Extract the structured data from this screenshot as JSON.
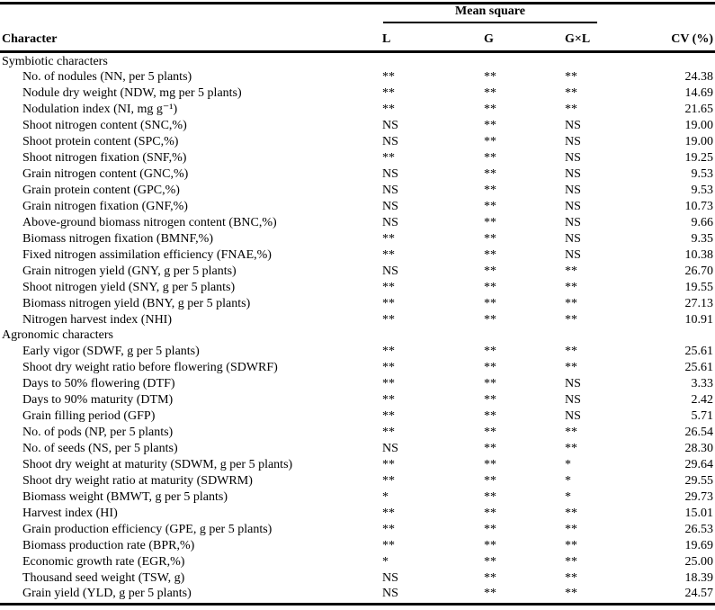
{
  "colors": {
    "text": "#000000",
    "background": "#ffffff"
  },
  "table": {
    "header": {
      "character": "Character",
      "mean_square": "Mean square",
      "col_l": "L",
      "col_g": "G",
      "col_gxl": "G×L",
      "col_cv": "CV (%)"
    },
    "sections": [
      {
        "title": "Symbiotic characters",
        "rows": [
          {
            "character": "No. of nodules (NN, per 5 plants)",
            "l": "**",
            "g": "**",
            "gxl": "**",
            "cv": "24.38"
          },
          {
            "character": "Nodule dry weight (NDW, mg per 5 plants)",
            "l": "**",
            "g": "**",
            "gxl": "**",
            "cv": "14.69"
          },
          {
            "character": "Nodulation index (NI, mg g⁻¹)",
            "l": "**",
            "g": "**",
            "gxl": "**",
            "cv": "21.65"
          },
          {
            "character": "Shoot nitrogen content (SNC,%)",
            "l": "NS",
            "g": "**",
            "gxl": "NS",
            "cv": "19.00"
          },
          {
            "character": "Shoot protein content (SPC,%)",
            "l": "NS",
            "g": "**",
            "gxl": "NS",
            "cv": "19.00"
          },
          {
            "character": "Shoot nitrogen fixation (SNF,%)",
            "l": "**",
            "g": "**",
            "gxl": "NS",
            "cv": "19.25"
          },
          {
            "character": "Grain nitrogen content (GNC,%)",
            "l": "NS",
            "g": "**",
            "gxl": "NS",
            "cv": "9.53"
          },
          {
            "character": "Grain protein content (GPC,%)",
            "l": "NS",
            "g": "**",
            "gxl": "NS",
            "cv": "9.53"
          },
          {
            "character": "Grain nitrogen fixation (GNF,%)",
            "l": "NS",
            "g": "**",
            "gxl": "NS",
            "cv": "10.73"
          },
          {
            "character": "Above-ground biomass nitrogen content (BNC,%)",
            "l": "NS",
            "g": "**",
            "gxl": "NS",
            "cv": "9.66"
          },
          {
            "character": "Biomass nitrogen fixation (BMNF,%)",
            "l": "**",
            "g": "**",
            "gxl": "NS",
            "cv": "9.35"
          },
          {
            "character": "Fixed nitrogen assimilation efficiency (FNAE,%)",
            "l": "**",
            "g": "**",
            "gxl": "NS",
            "cv": "10.38"
          },
          {
            "character": "Grain nitrogen yield (GNY, g per 5 plants)",
            "l": "NS",
            "g": "**",
            "gxl": "**",
            "cv": "26.70"
          },
          {
            "character": "Shoot nitrogen yield (SNY, g per 5 plants)",
            "l": "**",
            "g": "**",
            "gxl": "**",
            "cv": "19.55"
          },
          {
            "character": "Biomass nitrogen yield (BNY, g per 5 plants)",
            "l": "**",
            "g": "**",
            "gxl": "**",
            "cv": "27.13"
          },
          {
            "character": "Nitrogen harvest index (NHI)",
            "l": "**",
            "g": "**",
            "gxl": "**",
            "cv": "10.91"
          }
        ]
      },
      {
        "title": "Agronomic characters",
        "rows": [
          {
            "character": "Early vigor (SDWF, g per 5 plants)",
            "l": "**",
            "g": "**",
            "gxl": "**",
            "cv": "25.61"
          },
          {
            "character": "Shoot dry weight ratio before flowering (SDWRF)",
            "l": "**",
            "g": "**",
            "gxl": "**",
            "cv": "25.61"
          },
          {
            "character": "Days to 50% flowering (DTF)",
            "l": "**",
            "g": "**",
            "gxl": "NS",
            "cv": "3.33"
          },
          {
            "character": "Days to 90% maturity (DTM)",
            "l": "**",
            "g": "**",
            "gxl": "NS",
            "cv": "2.42"
          },
          {
            "character": "Grain filling period (GFP)",
            "l": "**",
            "g": "**",
            "gxl": "NS",
            "cv": "5.71"
          },
          {
            "character": "No. of pods (NP, per 5 plants)",
            "l": "**",
            "g": "**",
            "gxl": "**",
            "cv": "26.54"
          },
          {
            "character": "No. of seeds (NS, per 5 plants)",
            "l": "NS",
            "g": "**",
            "gxl": "**",
            "cv": "28.30"
          },
          {
            "character": "Shoot dry weight at maturity (SDWM, g per 5 plants)",
            "l": "**",
            "g": "**",
            "gxl": "*",
            "cv": "29.64"
          },
          {
            "character": "Shoot dry weight ratio at maturity (SDWRM)",
            "l": "**",
            "g": "**",
            "gxl": "*",
            "cv": "29.55"
          },
          {
            "character": "Biomass weight (BMWT, g per 5 plants)",
            "l": "*",
            "g": "**",
            "gxl": "*",
            "cv": "29.73"
          },
          {
            "character": "Harvest index (HI)",
            "l": "**",
            "g": "**",
            "gxl": "**",
            "cv": "15.01"
          },
          {
            "character": "Grain production efficiency (GPE, g per 5 plants)",
            "l": "**",
            "g": "**",
            "gxl": "**",
            "cv": "26.53"
          },
          {
            "character": "Biomass production rate (BPR,%)",
            "l": "**",
            "g": "**",
            "gxl": "**",
            "cv": "19.69"
          },
          {
            "character": "Economic growth rate (EGR,%)",
            "l": "*",
            "g": "**",
            "gxl": "**",
            "cv": "25.00"
          },
          {
            "character": "Thousand seed weight (TSW, g)",
            "l": "NS",
            "g": "**",
            "gxl": "**",
            "cv": "18.39"
          },
          {
            "character": "Grain yield (YLD, g per 5 plants)",
            "l": "NS",
            "g": "**",
            "gxl": "**",
            "cv": "24.57"
          }
        ]
      }
    ]
  }
}
